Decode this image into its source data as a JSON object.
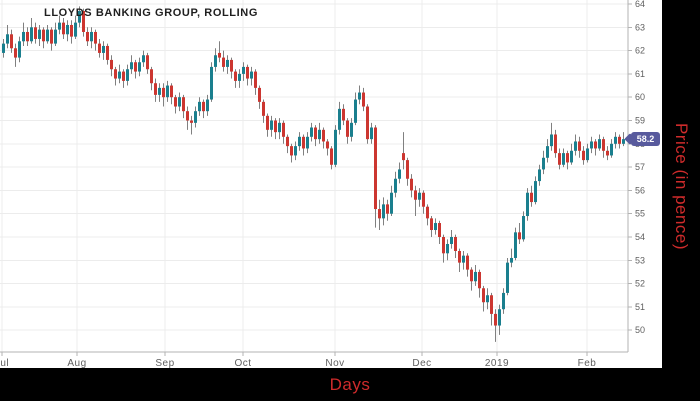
{
  "title": "LLOYDS BANKING GROUP, ROLLING",
  "axes": {
    "x_title": "Days",
    "y_title": "Price (in pence)"
  },
  "price_label": {
    "value": "58.2",
    "color": "#585a9d",
    "text_color": "#ffffff"
  },
  "colors": {
    "up": "#1a7f8e",
    "down": "#cc3630",
    "wick": "#808080",
    "grid": "#ececec",
    "axis": "#b3b3b3",
    "tick_text": "#606060",
    "axis_title": "#cf2b2b",
    "panel": "#000000",
    "title_text": "#1f1f1f",
    "background": "#ffffff"
  },
  "chart_data": {
    "type": "candlestick",
    "title": "LLOYDS BANKING GROUP, ROLLING",
    "xlabel": "Days",
    "ylabel": "Price (in pence)",
    "grid": true,
    "legend": "none",
    "last_price": 58.2,
    "x_axis": {
      "tick_labels": [
        "Jul",
        "Aug",
        "Sep",
        "Oct",
        "Nov",
        "Dec",
        "2019",
        "Feb"
      ],
      "tick_x": [
        2,
        77,
        165,
        243,
        335,
        422,
        497,
        587
      ]
    },
    "y_axis": {
      "ticks": [
        64,
        63,
        62,
        61,
        60,
        59,
        58,
        57,
        56,
        55,
        54,
        53,
        52,
        51,
        50
      ],
      "range": [
        49.3,
        64.2
      ]
    },
    "candles_format": [
      "open",
      "high",
      "low",
      "close"
    ],
    "candles": [
      [
        61.9,
        62.5,
        61.7,
        62.3
      ],
      [
        62.3,
        63.1,
        62.1,
        62.7
      ],
      [
        62.7,
        62.9,
        61.9,
        62.1
      ],
      [
        62.1,
        62.3,
        61.3,
        61.7
      ],
      [
        61.7,
        62.6,
        61.5,
        62.4
      ],
      [
        62.4,
        63.2,
        62.2,
        62.8
      ],
      [
        62.8,
        63.0,
        62.2,
        62.4
      ],
      [
        62.4,
        63.4,
        62.3,
        63.0
      ],
      [
        63.0,
        63.2,
        62.3,
        62.5
      ],
      [
        62.5,
        63.1,
        62.2,
        62.9
      ],
      [
        62.9,
        63.0,
        62.1,
        62.4
      ],
      [
        62.4,
        63.1,
        62.3,
        62.9
      ],
      [
        62.9,
        63.0,
        62.0,
        62.3
      ],
      [
        62.3,
        63.2,
        62.2,
        62.9
      ],
      [
        62.9,
        63.5,
        62.7,
        63.2
      ],
      [
        63.2,
        63.4,
        62.5,
        62.7
      ],
      [
        62.7,
        63.3,
        62.4,
        63.1
      ],
      [
        63.1,
        63.3,
        62.3,
        62.6
      ],
      [
        62.6,
        63.5,
        62.5,
        63.2
      ],
      [
        63.2,
        63.9,
        63.0,
        63.7
      ],
      [
        63.7,
        63.8,
        62.6,
        62.8
      ],
      [
        62.8,
        63.0,
        62.2,
        62.4
      ],
      [
        62.4,
        63.0,
        62.1,
        62.8
      ],
      [
        62.8,
        62.9,
        62.0,
        62.3
      ],
      [
        62.3,
        62.5,
        61.7,
        61.9
      ],
      [
        61.9,
        62.4,
        61.6,
        62.2
      ],
      [
        62.2,
        62.3,
        61.4,
        61.6
      ],
      [
        61.6,
        61.8,
        60.9,
        61.2
      ],
      [
        61.2,
        61.3,
        60.5,
        60.8
      ],
      [
        60.8,
        61.4,
        60.6,
        61.1
      ],
      [
        61.1,
        61.2,
        60.4,
        60.7
      ],
      [
        60.7,
        61.4,
        60.5,
        61.2
      ],
      [
        61.2,
        61.8,
        61.0,
        61.5
      ],
      [
        61.5,
        61.6,
        60.8,
        61.1
      ],
      [
        61.1,
        61.7,
        60.9,
        61.5
      ],
      [
        61.5,
        62.0,
        61.3,
        61.8
      ],
      [
        61.8,
        61.9,
        61.0,
        61.2
      ],
      [
        61.2,
        61.3,
        60.3,
        60.6
      ],
      [
        60.6,
        60.8,
        59.8,
        60.1
      ],
      [
        60.1,
        60.6,
        59.8,
        60.4
      ],
      [
        60.4,
        60.6,
        59.6,
        60.0
      ],
      [
        60.0,
        60.7,
        59.8,
        60.5
      ],
      [
        60.5,
        60.6,
        59.7,
        60.0
      ],
      [
        60.0,
        60.1,
        59.3,
        59.6
      ],
      [
        59.6,
        60.2,
        59.4,
        60.0
      ],
      [
        60.0,
        60.1,
        59.1,
        59.4
      ],
      [
        59.4,
        59.6,
        58.6,
        59.0
      ],
      [
        59.0,
        59.2,
        58.4,
        58.9
      ],
      [
        58.9,
        59.6,
        58.7,
        59.4
      ],
      [
        59.4,
        60.0,
        59.2,
        59.8
      ],
      [
        59.8,
        59.9,
        59.1,
        59.4
      ],
      [
        59.4,
        60.1,
        59.2,
        59.9
      ],
      [
        59.9,
        61.5,
        59.8,
        61.3
      ],
      [
        61.3,
        62.1,
        61.1,
        61.8
      ],
      [
        61.9,
        62.4,
        61.5,
        61.7
      ],
      [
        61.7,
        62.0,
        61.1,
        61.3
      ],
      [
        61.3,
        61.8,
        61.0,
        61.6
      ],
      [
        61.6,
        61.7,
        60.8,
        61.1
      ],
      [
        61.1,
        61.2,
        60.4,
        60.7
      ],
      [
        60.7,
        61.2,
        60.4,
        61.0
      ],
      [
        61.0,
        61.5,
        60.7,
        61.3
      ],
      [
        61.3,
        61.4,
        60.5,
        60.8
      ],
      [
        60.8,
        61.3,
        60.5,
        61.1
      ],
      [
        61.1,
        61.2,
        60.1,
        60.4
      ],
      [
        60.4,
        60.5,
        59.5,
        59.8
      ],
      [
        59.8,
        59.9,
        58.9,
        59.2
      ],
      [
        59.2,
        59.3,
        58.3,
        58.6
      ],
      [
        58.6,
        59.2,
        58.3,
        59.0
      ],
      [
        59.0,
        59.1,
        58.2,
        58.5
      ],
      [
        58.5,
        59.1,
        58.2,
        58.9
      ],
      [
        58.9,
        59.0,
        58.0,
        58.3
      ],
      [
        58.3,
        58.4,
        57.6,
        57.9
      ],
      [
        57.9,
        58.0,
        57.2,
        57.5
      ],
      [
        57.5,
        58.1,
        57.3,
        57.9
      ],
      [
        57.9,
        58.5,
        57.7,
        58.3
      ],
      [
        58.3,
        58.4,
        57.5,
        57.8
      ],
      [
        57.8,
        58.5,
        57.6,
        58.3
      ],
      [
        58.3,
        58.9,
        58.1,
        58.7
      ],
      [
        58.7,
        58.8,
        57.9,
        58.2
      ],
      [
        58.2,
        58.9,
        58.0,
        58.6
      ],
      [
        58.6,
        58.7,
        57.8,
        58.1
      ],
      [
        58.1,
        58.2,
        57.5,
        57.8
      ],
      [
        57.8,
        57.9,
        56.9,
        57.1
      ],
      [
        57.1,
        58.8,
        57.0,
        58.6
      ],
      [
        58.6,
        59.8,
        58.4,
        59.5
      ],
      [
        59.5,
        59.7,
        58.8,
        59.0
      ],
      [
        59.0,
        59.1,
        58.0,
        58.3
      ],
      [
        58.3,
        59.1,
        58.1,
        58.9
      ],
      [
        58.9,
        60.2,
        58.8,
        59.9
      ],
      [
        59.9,
        60.5,
        59.7,
        60.2
      ],
      [
        60.2,
        60.4,
        59.4,
        59.6
      ],
      [
        59.6,
        59.7,
        58.0,
        58.2
      ],
      [
        58.2,
        58.9,
        58.0,
        58.7
      ],
      [
        58.7,
        58.8,
        54.4,
        55.2
      ],
      [
        55.2,
        55.6,
        54.3,
        54.8
      ],
      [
        54.8,
        55.7,
        54.5,
        55.4
      ],
      [
        55.4,
        55.6,
        54.7,
        55.0
      ],
      [
        55.0,
        56.2,
        54.9,
        55.9
      ],
      [
        55.9,
        56.8,
        55.7,
        56.5
      ],
      [
        56.5,
        57.2,
        56.3,
        56.9
      ],
      [
        57.6,
        58.5,
        56.9,
        57.3
      ],
      [
        57.3,
        57.4,
        56.2,
        56.5
      ],
      [
        56.5,
        56.7,
        55.7,
        56.0
      ],
      [
        56.0,
        56.2,
        54.9,
        55.6
      ],
      [
        55.6,
        56.1,
        55.3,
        55.9
      ],
      [
        55.9,
        56.0,
        55.0,
        55.3
      ],
      [
        55.3,
        55.4,
        54.5,
        54.8
      ],
      [
        54.8,
        54.9,
        54.0,
        54.3
      ],
      [
        54.3,
        54.8,
        54.1,
        54.6
      ],
      [
        54.6,
        54.7,
        53.7,
        54.0
      ],
      [
        54.0,
        54.1,
        52.9,
        53.3
      ],
      [
        53.3,
        53.9,
        53.0,
        53.7
      ],
      [
        53.7,
        54.3,
        53.5,
        54.0
      ],
      [
        54.0,
        54.1,
        53.1,
        53.4
      ],
      [
        53.4,
        53.5,
        52.5,
        52.9
      ],
      [
        52.9,
        53.4,
        52.6,
        53.2
      ],
      [
        53.2,
        53.3,
        52.3,
        52.6
      ],
      [
        52.6,
        52.7,
        51.7,
        52.1
      ],
      [
        52.1,
        52.8,
        51.9,
        52.5
      ],
      [
        52.5,
        52.6,
        51.4,
        51.8
      ],
      [
        51.8,
        51.9,
        50.8,
        51.2
      ],
      [
        51.2,
        51.8,
        50.9,
        51.5
      ],
      [
        51.5,
        51.6,
        50.2,
        50.7
      ],
      [
        50.7,
        50.9,
        49.5,
        50.2
      ],
      [
        50.2,
        51.1,
        49.8,
        50.9
      ],
      [
        50.9,
        51.8,
        50.7,
        51.6
      ],
      [
        51.6,
        53.1,
        51.5,
        52.9
      ],
      [
        52.9,
        53.5,
        52.7,
        53.1
      ],
      [
        53.1,
        54.4,
        53.0,
        54.2
      ],
      [
        54.2,
        54.6,
        53.7,
        53.9
      ],
      [
        53.9,
        55.1,
        53.8,
        54.9
      ],
      [
        54.9,
        56.1,
        54.7,
        55.9
      ],
      [
        55.9,
        56.2,
        55.3,
        55.5
      ],
      [
        55.5,
        56.6,
        55.4,
        56.4
      ],
      [
        56.4,
        57.1,
        56.2,
        56.9
      ],
      [
        56.9,
        57.7,
        56.7,
        57.4
      ],
      [
        57.4,
        58.2,
        57.2,
        57.9
      ],
      [
        57.9,
        58.9,
        57.7,
        58.4
      ],
      [
        58.4,
        58.6,
        57.4,
        57.6
      ],
      [
        57.6,
        57.8,
        56.9,
        57.1
      ],
      [
        57.1,
        57.8,
        57.0,
        57.6
      ],
      [
        57.6,
        57.7,
        56.9,
        57.2
      ],
      [
        57.2,
        58.0,
        57.1,
        57.7
      ],
      [
        57.7,
        58.4,
        57.5,
        58.1
      ],
      [
        58.1,
        58.3,
        57.4,
        57.7
      ],
      [
        57.7,
        57.9,
        57.1,
        57.3
      ],
      [
        57.3,
        58.0,
        57.2,
        57.8
      ],
      [
        57.8,
        58.3,
        57.6,
        58.1
      ],
      [
        58.1,
        58.2,
        57.5,
        57.8
      ],
      [
        57.8,
        58.4,
        57.7,
        58.2
      ],
      [
        58.2,
        58.3,
        57.4,
        57.7
      ],
      [
        57.7,
        57.9,
        57.3,
        57.5
      ],
      [
        57.5,
        58.2,
        57.4,
        58.0
      ],
      [
        58.0,
        58.5,
        57.8,
        58.3
      ],
      [
        58.3,
        58.4,
        57.8,
        58.0
      ],
      [
        58.0,
        58.5,
        57.9,
        58.2
      ]
    ]
  }
}
